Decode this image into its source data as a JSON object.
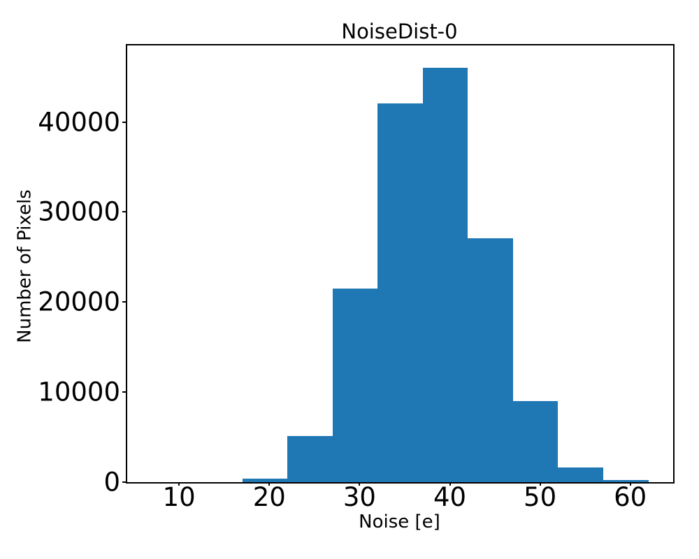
{
  "chart_data": {
    "type": "bar",
    "subtype": "histogram",
    "title": "NoiseDist-0",
    "xlabel": "Noise [e]",
    "ylabel": "Number of Pixels",
    "bin_edges": [
      7,
      12,
      17,
      22,
      27,
      32,
      37,
      42,
      47,
      52,
      57,
      62
    ],
    "counts": [
      0,
      0,
      400,
      5100,
      21500,
      42100,
      46000,
      27100,
      9000,
      1600,
      200
    ],
    "x_ticks": [
      10,
      20,
      30,
      40,
      50,
      60
    ],
    "y_ticks": [
      0,
      10000,
      20000,
      30000,
      40000
    ],
    "xlim": [
      4.25,
      64.75
    ],
    "ylim": [
      0,
      48500
    ],
    "bar_color": "#1f77b4",
    "axis_color": "#000000",
    "background_color": "#ffffff",
    "grid": false,
    "legend": null
  }
}
